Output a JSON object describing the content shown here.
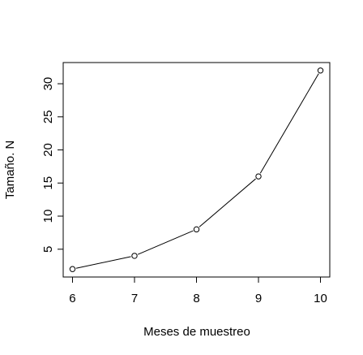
{
  "chart_data": {
    "type": "line",
    "title": "",
    "xlabel": "Meses de muestreo",
    "ylabel": "Tamaño. N",
    "x": [
      6,
      7,
      8,
      9,
      10
    ],
    "y": [
      2,
      4,
      8,
      16,
      32
    ],
    "xlim": [
      5.85,
      10.15
    ],
    "ylim": [
      0.8,
      33.2
    ],
    "xticks": [
      6,
      7,
      8,
      9,
      10
    ],
    "yticks": [
      5,
      10,
      15,
      20,
      25,
      30
    ],
    "marker": "open-circle",
    "grid": false,
    "line_color": "#000000"
  }
}
